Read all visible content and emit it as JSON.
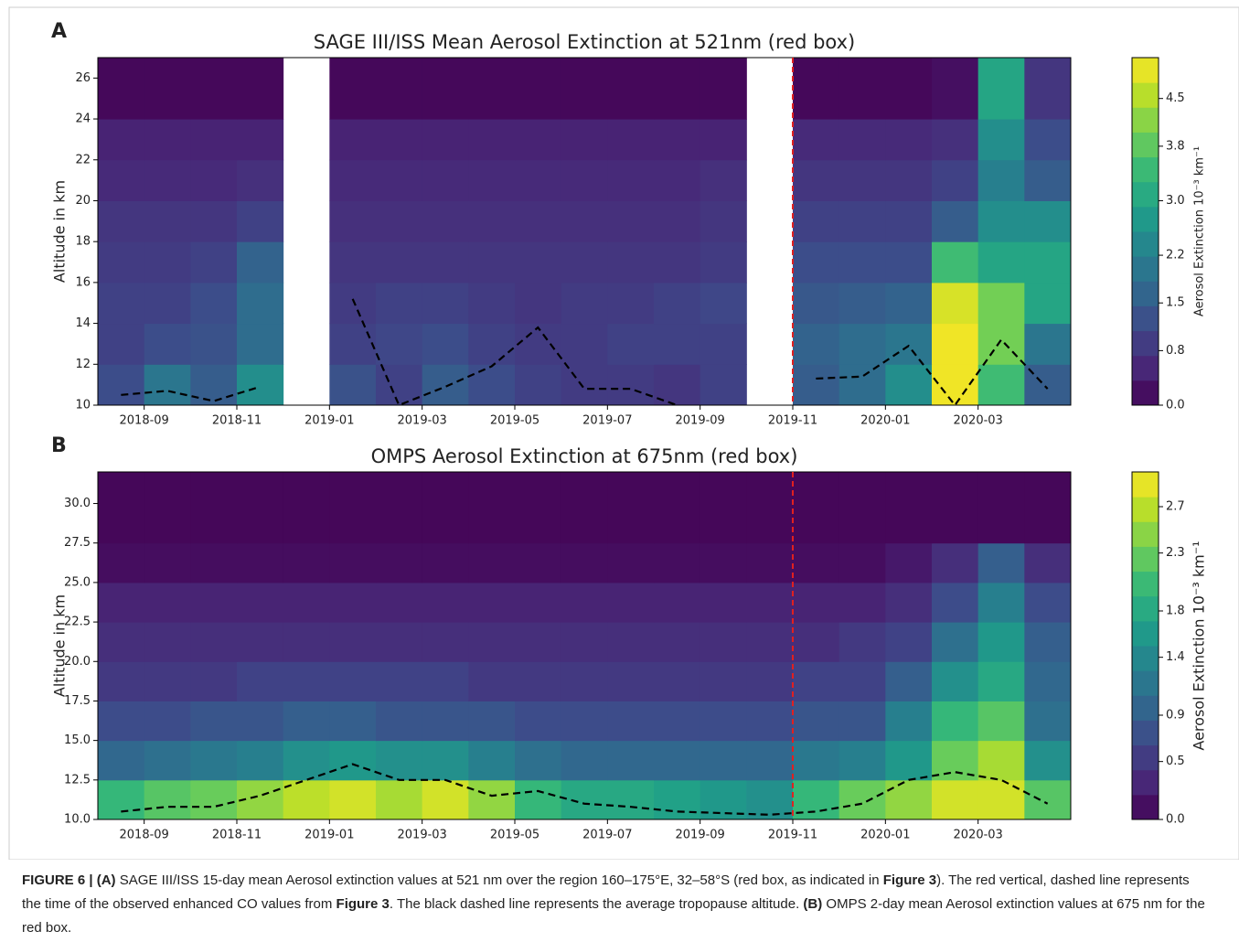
{
  "chart_data": [
    {
      "type": "heatmap",
      "panel_label": "A",
      "title": "SAGE III/ISS Mean Aerosol Extinction at 521nm (red box)",
      "y_label": "Altitude in km",
      "colorbar_label": "Aerosol Extinction 10⁻³ km⁻¹",
      "x": [
        "2018-08",
        "2018-09",
        "2018-10",
        "2018-11",
        "2018-12",
        "2019-01",
        "2019-02",
        "2019-03",
        "2019-04",
        "2019-05",
        "2019-06",
        "2019-07",
        "2019-08",
        "2019-09",
        "2019-10",
        "2019-11",
        "2019-12",
        "2020-01",
        "2020-02",
        "2020-03",
        "2020-04"
      ],
      "xticks": [
        "2018-09",
        "2018-11",
        "2019-01",
        "2019-03",
        "2019-05",
        "2019-07",
        "2019-09",
        "2019-11",
        "2020-01",
        "2020-03"
      ],
      "y_edges": [
        10,
        12,
        14,
        16,
        18,
        20,
        22,
        24,
        27
      ],
      "ylim": [
        10,
        27
      ],
      "yticks": [
        10,
        12,
        14,
        16,
        18,
        20,
        22,
        24,
        26
      ],
      "z": [
        [
          1.2,
          2.0,
          1.5,
          2.5,
          null,
          1.3,
          1.0,
          1.5,
          1.2,
          1.0,
          0.9,
          0.9,
          0.8,
          1.0,
          null,
          1.5,
          1.8,
          2.5,
          5.0,
          3.5,
          1.5
        ],
        [
          1.0,
          1.2,
          1.3,
          1.8,
          null,
          1.0,
          1.1,
          1.2,
          1.0,
          0.9,
          0.9,
          1.0,
          1.0,
          1.0,
          null,
          1.6,
          1.8,
          2.0,
          5.0,
          4.0,
          2.0
        ],
        [
          1.0,
          1.0,
          1.2,
          1.8,
          null,
          0.9,
          1.0,
          1.0,
          0.9,
          0.8,
          0.9,
          0.9,
          1.0,
          1.1,
          null,
          1.4,
          1.5,
          1.6,
          4.8,
          4.0,
          3.0
        ],
        [
          0.9,
          0.9,
          1.0,
          1.6,
          null,
          0.8,
          0.8,
          0.8,
          0.8,
          0.8,
          0.8,
          0.8,
          0.8,
          0.9,
          null,
          1.2,
          1.2,
          1.2,
          3.5,
          3.0,
          3.0
        ],
        [
          0.8,
          0.8,
          0.8,
          1.0,
          null,
          0.7,
          0.7,
          0.7,
          0.7,
          0.7,
          0.7,
          0.7,
          0.7,
          0.8,
          null,
          1.0,
          1.0,
          1.0,
          1.5,
          2.5,
          2.5
        ],
        [
          0.6,
          0.6,
          0.6,
          0.7,
          null,
          0.6,
          0.6,
          0.6,
          0.6,
          0.6,
          0.6,
          0.6,
          0.6,
          0.7,
          null,
          0.8,
          0.8,
          0.8,
          1.0,
          2.2,
          1.5
        ],
        [
          0.5,
          0.5,
          0.5,
          0.5,
          null,
          0.5,
          0.5,
          0.5,
          0.5,
          0.5,
          0.5,
          0.5,
          0.5,
          0.5,
          null,
          0.6,
          0.6,
          0.6,
          0.7,
          2.5,
          1.2
        ],
        [
          0.1,
          0.1,
          0.1,
          0.1,
          null,
          0.1,
          0.1,
          0.1,
          0.1,
          0.1,
          0.1,
          0.1,
          0.1,
          0.1,
          null,
          0.1,
          0.1,
          0.1,
          0.2,
          3.0,
          0.8
        ]
      ],
      "tropopause": [
        10.5,
        10.7,
        10.2,
        10.9,
        null,
        15.2,
        10.0,
        10.9,
        11.9,
        13.8,
        10.8,
        10.8,
        10.0,
        null,
        null,
        11.3,
        11.4,
        12.9,
        10.0,
        13.2,
        10.8
      ],
      "event_x": "2019-11",
      "clim": [
        0,
        5.1
      ],
      "cticks": [
        {
          "value": 0,
          "label": "0.0"
        },
        0.8,
        1.5,
        2.2,
        {
          "value": 3,
          "label": "3.0"
        },
        3.8,
        4.5
      ]
    },
    {
      "type": "heatmap",
      "panel_label": "B",
      "title": "OMPS Aerosol Extinction at 675nm (red box)",
      "y_label": "Altitude in km",
      "colorbar_label": "Aerosol Extinction 10⁻³ km⁻¹",
      "x": [
        "2018-08",
        "2018-09",
        "2018-10",
        "2018-11",
        "2018-12",
        "2019-01",
        "2019-02",
        "2019-03",
        "2019-04",
        "2019-05",
        "2019-06",
        "2019-07",
        "2019-08",
        "2019-09",
        "2019-10",
        "2019-11",
        "2019-12",
        "2020-01",
        "2020-02",
        "2020-03",
        "2020-04"
      ],
      "xticks": [
        "2018-09",
        "2018-11",
        "2019-01",
        "2019-03",
        "2019-05",
        "2019-07",
        "2019-09",
        "2019-11",
        "2020-01",
        "2020-03"
      ],
      "y_edges": [
        10,
        12.5,
        15,
        17.5,
        20,
        22.5,
        25,
        27.5,
        32
      ],
      "ylim": [
        10,
        32
      ],
      "yticks": [
        {
          "value": 10,
          "label": "10.0"
        },
        12.5,
        {
          "value": 15,
          "label": "15.0"
        },
        17.5,
        {
          "value": 20,
          "label": "20.0"
        },
        22.5,
        {
          "value": 25,
          "label": "25.0"
        },
        27.5,
        {
          "value": 30,
          "label": "30.0"
        }
      ],
      "z": [
        [
          2.0,
          2.2,
          2.3,
          2.5,
          2.7,
          2.8,
          2.6,
          2.8,
          2.5,
          2.0,
          1.8,
          1.8,
          1.7,
          1.6,
          1.5,
          2.0,
          2.3,
          2.5,
          2.8,
          2.8,
          2.2
        ],
        [
          1.0,
          1.1,
          1.2,
          1.3,
          1.5,
          1.6,
          1.5,
          1.5,
          1.3,
          1.1,
          1.0,
          1.0,
          1.0,
          1.0,
          1.0,
          1.2,
          1.3,
          1.6,
          2.3,
          2.6,
          1.5
        ],
        [
          0.7,
          0.7,
          0.8,
          0.8,
          0.9,
          0.9,
          0.8,
          0.8,
          0.8,
          0.7,
          0.7,
          0.7,
          0.7,
          0.7,
          0.7,
          0.8,
          0.8,
          1.3,
          2.0,
          2.2,
          1.1
        ],
        [
          0.5,
          0.5,
          0.5,
          0.6,
          0.6,
          0.6,
          0.6,
          0.6,
          0.5,
          0.5,
          0.5,
          0.5,
          0.5,
          0.5,
          0.5,
          0.6,
          0.6,
          0.9,
          1.5,
          1.8,
          1.0
        ],
        [
          0.4,
          0.4,
          0.4,
          0.4,
          0.4,
          0.4,
          0.4,
          0.4,
          0.4,
          0.4,
          0.4,
          0.4,
          0.4,
          0.4,
          0.4,
          0.4,
          0.5,
          0.6,
          1.1,
          1.6,
          0.9
        ],
        [
          0.3,
          0.3,
          0.3,
          0.3,
          0.3,
          0.3,
          0.3,
          0.3,
          0.3,
          0.3,
          0.3,
          0.3,
          0.3,
          0.3,
          0.3,
          0.3,
          0.3,
          0.4,
          0.7,
          1.3,
          0.7
        ],
        [
          0.1,
          0.1,
          0.1,
          0.1,
          0.1,
          0.1,
          0.1,
          0.1,
          0.1,
          0.1,
          0.1,
          0.1,
          0.1,
          0.1,
          0.1,
          0.1,
          0.1,
          0.2,
          0.4,
          0.9,
          0.4
        ],
        [
          0.05,
          0.05,
          0.05,
          0.05,
          0.05,
          0.05,
          0.05,
          0.05,
          0.05,
          0.05,
          0.05,
          0.05,
          0.05,
          0.05,
          0.05,
          0.05,
          0.05,
          0.05,
          0.05,
          0.05,
          0.05
        ]
      ],
      "tropopause": [
        10.5,
        10.8,
        10.8,
        11.5,
        12.5,
        13.5,
        12.5,
        12.5,
        11.5,
        11.8,
        11.0,
        10.8,
        10.5,
        10.4,
        10.3,
        10.5,
        11.0,
        12.5,
        13.0,
        12.5,
        11.0
      ],
      "event_x": "2019-11",
      "clim": [
        0,
        3.0
      ],
      "cticks": [
        {
          "value": 0,
          "label": "0.0"
        },
        0.5,
        0.9,
        1.4,
        1.8,
        2.3,
        2.7
      ]
    }
  ],
  "caption": [
    {
      "text": "FIGURE 6 | (A)",
      "bold": true
    },
    {
      "text": " SAGE III/ISS 15-day mean Aerosol extinction values at 521 nm over the region 160–175°E, 32–58°S (red box, as indicated in ",
      "bold": false
    },
    {
      "text": "Figure 3",
      "bold": true
    },
    {
      "text": "). The red vertical, dashed line represents the time of the observed enhanced CO values from ",
      "bold": false
    },
    {
      "text": "Figure 3",
      "bold": true
    },
    {
      "text": ". The black dashed line represents the average tropopause altitude. ",
      "bold": false
    },
    {
      "text": "(B)",
      "bold": true
    },
    {
      "text": " OMPS 2-day mean Aerosol extinction values at 675 nm for the red box.",
      "bold": false
    }
  ]
}
